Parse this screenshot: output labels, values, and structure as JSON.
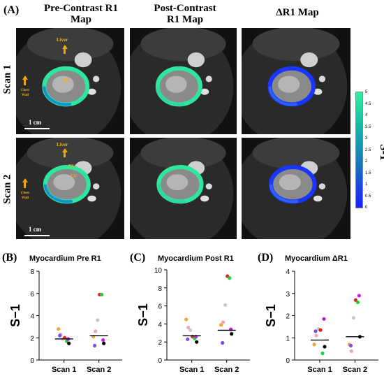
{
  "figure_label": "(A)",
  "columns": {
    "pre": [
      "Pre-Contrast R1",
      "Map"
    ],
    "post": [
      "Post-Contrast",
      "R1 Map"
    ],
    "delta": "ΔR1 Map"
  },
  "rows": {
    "scan1": "Scan 1",
    "scan2": "Scan 2"
  },
  "annotations": {
    "liver": "Liver",
    "rv": "RV",
    "lv": "LV",
    "chest_wall": "Chest Wall"
  },
  "scale_bar_label": "1 cm",
  "colorbar": {
    "unit": "S-1",
    "ticks": [
      "5",
      "4.5",
      "4",
      "3.5",
      "3",
      "2.5",
      "2",
      "1.5",
      "1",
      "0.5",
      "0"
    ],
    "colors": {
      "top": "#33f0a2",
      "bottom": "#1b22ff"
    }
  },
  "colors": {
    "myocardium_ring_high": "#2ee6a0",
    "myocardium_ring_low": "#1a35ff",
    "annotation": "#e7b21f",
    "arrow": "#f0a30a"
  },
  "chart_data": [
    {
      "panel_label": "(B)",
      "type": "scatter",
      "title": "Myocardium Pre R1",
      "ylabel": "S−1",
      "categories": [
        "Scan 1",
        "Scan 2"
      ],
      "ylim": [
        0,
        8
      ],
      "yticks": [
        "0",
        "2",
        "4",
        "6",
        "8"
      ],
      "series": [
        {
          "color": "#f3a53c",
          "values": [
            2.8,
            2.1
          ]
        },
        {
          "color": "#f0a0c8",
          "values": [
            2.3,
            2.6
          ]
        },
        {
          "color": "#c8c8c8",
          "values": [
            1.9,
            3.6
          ]
        },
        {
          "color": "#e02020",
          "values": [
            2.0,
            5.9
          ]
        },
        {
          "color": "#20cc40",
          "values": [
            1.7,
            5.9
          ]
        },
        {
          "color": "#000000",
          "values": [
            1.5,
            1.5
          ]
        },
        {
          "color": "#7a4fe0",
          "values": [
            2.2,
            1.3
          ]
        },
        {
          "color": "#c020e0",
          "values": [
            1.9,
            1.8
          ]
        }
      ],
      "means": [
        1.9,
        2.2
      ]
    },
    {
      "panel_label": "(C)",
      "type": "scatter",
      "title": "Myocardium Post R1",
      "ylabel": "S−1",
      "categories": [
        "Scan 1",
        "Scan 2"
      ],
      "ylim": [
        0,
        10
      ],
      "yticks": [
        "0",
        "2",
        "4",
        "6",
        "8",
        "10"
      ],
      "series": [
        {
          "color": "#f3a53c",
          "values": [
            4.5,
            3.9
          ]
        },
        {
          "color": "#f0a0c8",
          "values": [
            3.6,
            4.2
          ]
        },
        {
          "color": "#c8c8c8",
          "values": [
            3.3,
            6.1
          ]
        },
        {
          "color": "#e02020",
          "values": [
            2.6,
            9.3
          ]
        },
        {
          "color": "#20cc40",
          "values": [
            2.4,
            9.1
          ]
        },
        {
          "color": "#000000",
          "values": [
            2.0,
            2.9
          ]
        },
        {
          "color": "#7a4fe0",
          "values": [
            2.3,
            1.9
          ]
        },
        {
          "color": "#c020e0",
          "values": [
            2.6,
            3.4
          ]
        }
      ],
      "means": [
        2.7,
        3.3
      ]
    },
    {
      "panel_label": "(D)",
      "type": "scatter",
      "title": "Myocardium ΔR1",
      "ylabel": "S−1",
      "categories": [
        "Scan 1",
        "Scan 2"
      ],
      "ylim": [
        0,
        4
      ],
      "yticks": [
        "0",
        "1",
        "2",
        "3",
        "4"
      ],
      "series": [
        {
          "color": "#f3a53c",
          "values": [
            0.7,
            0.7
          ]
        },
        {
          "color": "#f0a0c8",
          "values": [
            1.1,
            0.4
          ]
        },
        {
          "color": "#c8c8c8",
          "values": [
            1.4,
            1.9
          ]
        },
        {
          "color": "#e02020",
          "values": [
            1.35,
            2.7
          ]
        },
        {
          "color": "#20cc40",
          "values": [
            0.3,
            2.6
          ]
        },
        {
          "color": "#000000",
          "values": [
            0.6,
            1.05
          ]
        },
        {
          "color": "#7a4fe0",
          "values": [
            1.3,
            0.65
          ]
        },
        {
          "color": "#c020e0",
          "values": [
            1.85,
            2.9
          ]
        }
      ],
      "means": [
        0.9,
        1.05
      ]
    }
  ]
}
